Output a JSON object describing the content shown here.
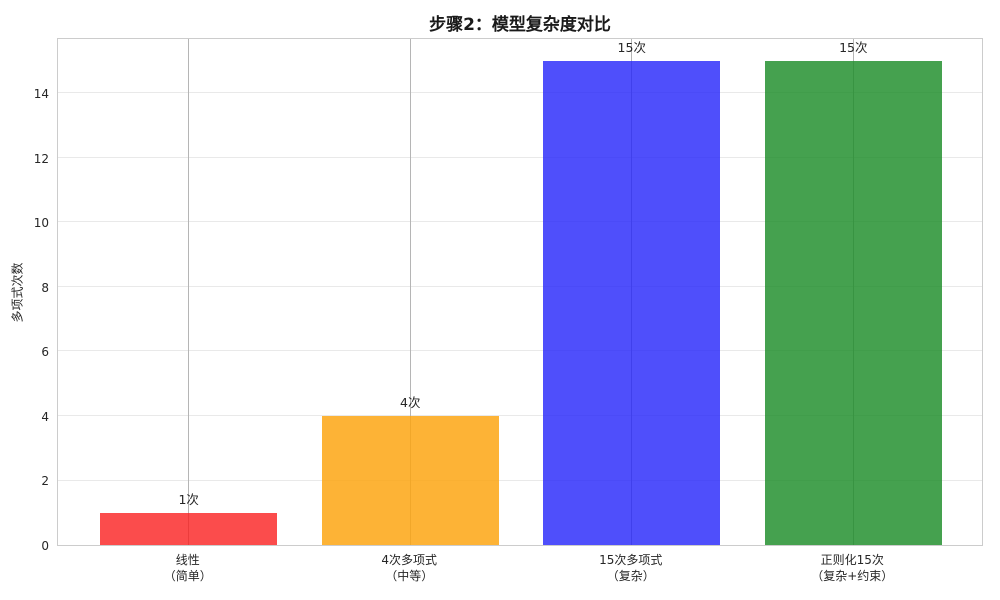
{
  "chart_data": {
    "type": "bar",
    "title": "步骤2：模型复杂度对比",
    "xlabel": "",
    "ylabel": "多项式次数",
    "categories": [
      "线性\n（简单）",
      "4次多项式\n（中等）",
      "15次多项式\n（复杂）",
      "正则化15次\n（复杂+约束）"
    ],
    "values": [
      1,
      4,
      15,
      15
    ],
    "bar_value_labels": [
      "1次",
      "4次",
      "15次",
      "15次"
    ],
    "bar_colors": [
      "rgba(250, 25, 25, 0.78)",
      "rgba(253, 165, 15, 0.84)",
      "rgba(35, 35, 250, 0.8)",
      "rgba(28, 140, 40, 0.82)"
    ],
    "yticks": [
      0,
      2,
      4,
      6,
      8,
      10,
      12,
      14
    ],
    "ylim": [
      0,
      15.75
    ],
    "grid": true,
    "legend_position": "none",
    "background_color": "#ffffff",
    "gridline_h_color": "#e9e9e9",
    "gridline_v_color": "#b5b5b5",
    "spine_color": "#cccccc"
  }
}
